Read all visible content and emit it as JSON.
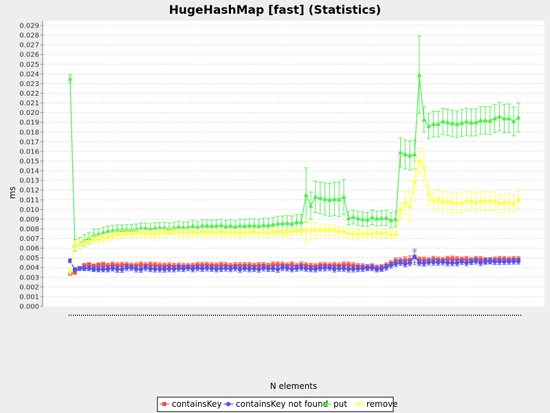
{
  "chart_data": {
    "type": "line",
    "title": "HugeHashMap [fast] (Statistics)",
    "xlabel": "N elements",
    "ylabel": "ms",
    "ylim": [
      0,
      0.0295
    ],
    "yticks": [
      "0.000",
      "0.001",
      "0.002",
      "0.003",
      "0.004",
      "0.005",
      "0.006",
      "0.007",
      "0.008",
      "0.009",
      "0.010",
      "0.011",
      "0.012",
      "0.013",
      "0.014",
      "0.015",
      "0.016",
      "0.017",
      "0.018",
      "0.019",
      "0.020",
      "0.021",
      "0.022",
      "0.023",
      "0.024",
      "0.025",
      "0.026",
      "0.027",
      "0.028",
      "0.029"
    ],
    "grid": true,
    "legend_position": "bottom",
    "error_bars": true,
    "series": [
      {
        "name": "containsKey",
        "color": "#ee5555",
        "marker": "square",
        "keyframes": [
          [
            0,
            0.0034
          ],
          [
            1,
            0.0035
          ],
          [
            3,
            0.0042
          ],
          [
            10,
            0.0042
          ],
          [
            30,
            0.0042
          ],
          [
            50,
            0.0042
          ],
          [
            60,
            0.0042
          ],
          [
            62,
            0.0041
          ],
          [
            66,
            0.004
          ],
          [
            69,
            0.0047
          ],
          [
            72,
            0.0048
          ],
          [
            73,
            0.0051
          ],
          [
            74,
            0.0048
          ],
          [
            90,
            0.0048
          ],
          [
            96,
            0.0048
          ]
        ],
        "err_keyframes": [
          [
            0,
            0.0002
          ],
          [
            1,
            0.0002
          ],
          [
            10,
            0.0003
          ],
          [
            69,
            0.0003
          ],
          [
            72,
            0.0004
          ],
          [
            73,
            0.0008
          ],
          [
            74,
            0.0003
          ],
          [
            96,
            0.0003
          ]
        ]
      },
      {
        "name": "containsKey not found",
        "color": "#5555ee",
        "marker": "circle",
        "keyframes": [
          [
            0,
            0.0047
          ],
          [
            1,
            0.0038
          ],
          [
            3,
            0.0039
          ],
          [
            30,
            0.0039
          ],
          [
            50,
            0.0039
          ],
          [
            62,
            0.0039
          ],
          [
            66,
            0.0039
          ],
          [
            69,
            0.0044
          ],
          [
            72,
            0.0045
          ],
          [
            73,
            0.0051
          ],
          [
            74,
            0.0045
          ],
          [
            90,
            0.0046
          ],
          [
            96,
            0.0046
          ]
        ],
        "err_keyframes": [
          [
            0,
            0.0002
          ],
          [
            1,
            0.0002
          ],
          [
            10,
            0.0003
          ],
          [
            69,
            0.0003
          ],
          [
            72,
            0.0003
          ],
          [
            73,
            0.0006
          ],
          [
            74,
            0.0003
          ],
          [
            96,
            0.0003
          ]
        ]
      },
      {
        "name": "put",
        "color": "#55ee55",
        "marker": "triangle",
        "keyframes": [
          [
            0,
            0.0235
          ],
          [
            1,
            0.0063
          ],
          [
            2,
            0.0065
          ],
          [
            5,
            0.0074
          ],
          [
            10,
            0.0079
          ],
          [
            20,
            0.0081
          ],
          [
            30,
            0.0083
          ],
          [
            40,
            0.0083
          ],
          [
            49,
            0.0087
          ],
          [
            50,
            0.0115
          ],
          [
            51,
            0.0104
          ],
          [
            52,
            0.0113
          ],
          [
            55,
            0.011
          ],
          [
            58,
            0.0113
          ],
          [
            59,
            0.0091
          ],
          [
            62,
            0.009
          ],
          [
            66,
            0.0091
          ],
          [
            69,
            0.009
          ],
          [
            70,
            0.0159
          ],
          [
            71,
            0.0157
          ],
          [
            73,
            0.0157
          ],
          [
            74,
            0.0239
          ],
          [
            75,
            0.0193
          ],
          [
            76,
            0.0186
          ],
          [
            79,
            0.0191
          ],
          [
            81,
            0.0189
          ],
          [
            86,
            0.019
          ],
          [
            88,
            0.0192
          ],
          [
            91,
            0.0196
          ],
          [
            94,
            0.0191
          ],
          [
            95,
            0.0195
          ]
        ],
        "err_keyframes": [
          [
            0,
            0.0004
          ],
          [
            1,
            0.0006
          ],
          [
            10,
            0.0005
          ],
          [
            30,
            0.0006
          ],
          [
            49,
            0.0008
          ],
          [
            50,
            0.0028
          ],
          [
            51,
            0.0014
          ],
          [
            52,
            0.0016
          ],
          [
            58,
            0.0018
          ],
          [
            59,
            0.0007
          ],
          [
            69,
            0.0008
          ],
          [
            70,
            0.0015
          ],
          [
            73,
            0.0015
          ],
          [
            74,
            0.004
          ],
          [
            75,
            0.0013
          ],
          [
            95,
            0.0015
          ]
        ]
      },
      {
        "name": "remove",
        "color": "#ffff55",
        "marker": "diamond",
        "keyframes": [
          [
            0,
            0.0036
          ],
          [
            1,
            0.0063
          ],
          [
            2,
            0.0064
          ],
          [
            5,
            0.0069
          ],
          [
            10,
            0.0074
          ],
          [
            20,
            0.0076
          ],
          [
            30,
            0.0076
          ],
          [
            40,
            0.0076
          ],
          [
            49,
            0.0077
          ],
          [
            50,
            0.0078
          ],
          [
            53,
            0.0079
          ],
          [
            58,
            0.0077
          ],
          [
            59,
            0.0075
          ],
          [
            66,
            0.0075
          ],
          [
            69,
            0.0074
          ],
          [
            70,
            0.0099
          ],
          [
            71,
            0.0107
          ],
          [
            72,
            0.0103
          ],
          [
            73,
            0.0128
          ],
          [
            74,
            0.015
          ],
          [
            75,
            0.0143
          ],
          [
            76,
            0.0115
          ],
          [
            77,
            0.0109
          ],
          [
            80,
            0.0108
          ],
          [
            86,
            0.0107
          ],
          [
            88,
            0.0109
          ],
          [
            91,
            0.0106
          ],
          [
            94,
            0.0106
          ],
          [
            95,
            0.011
          ]
        ],
        "err_keyframes": [
          [
            0,
            0.0003
          ],
          [
            1,
            0.0005
          ],
          [
            10,
            0.0004
          ],
          [
            49,
            0.0004
          ],
          [
            50,
            0.0012
          ],
          [
            53,
            0.0006
          ],
          [
            69,
            0.0004
          ],
          [
            70,
            0.0008
          ],
          [
            73,
            0.002
          ],
          [
            74,
            0.0014
          ],
          [
            75,
            0.002
          ],
          [
            76,
            0.0011
          ],
          [
            95,
            0.0009
          ]
        ]
      }
    ]
  }
}
